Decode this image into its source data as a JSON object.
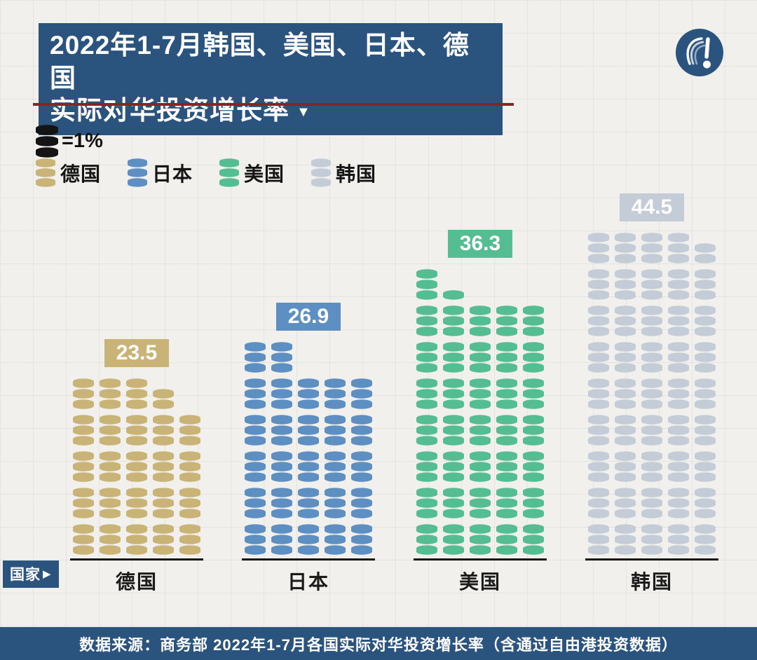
{
  "header": {
    "title_line1": "2022年1-7月韩国、美国、日本、德国",
    "title_line2": "实际对华投资增长率",
    "title_arrow": "▼",
    "title_bg": "#2a537e",
    "underline_color": "#8e2126"
  },
  "legend": {
    "unit_icon_color": "#141414",
    "unit_label": "=1%",
    "series": [
      {
        "label": "德国",
        "color": "#c9b376"
      },
      {
        "label": "日本",
        "color": "#5d8fc2"
      },
      {
        "label": "美国",
        "color": "#55bd92"
      },
      {
        "label": "韩国",
        "color": "#c4cdd7"
      }
    ]
  },
  "chart_data": {
    "type": "pictograph-bar",
    "title": "2022年1-7月韩国、美国、日本、德国实际对华投资增长率",
    "unit_per_stack_percent": 1,
    "disks_per_full_stack": 3,
    "categories": [
      "德国",
      "日本",
      "美国",
      "韩国"
    ],
    "values": [
      23.5,
      26.9,
      36.3,
      44.5
    ],
    "series_colors": [
      "#c9b376",
      "#5d8fc2",
      "#55bd92",
      "#c4cdd7"
    ],
    "axis_label": "国家",
    "axis_label_arrow": "▶",
    "legend_position": "top-left",
    "columns": [
      {
        "slug": "germany",
        "label": "德国",
        "value": "23.5",
        "color": "#c9b376",
        "rows": [
          [
            3,
            3,
            3,
            2
          ],
          [
            3,
            3,
            3,
            3,
            3
          ],
          [
            3,
            3,
            3,
            3,
            3
          ],
          [
            3,
            3,
            3,
            3,
            3
          ],
          [
            3,
            3,
            3,
            3,
            3
          ]
        ]
      },
      {
        "slug": "japan",
        "label": "日本",
        "value": "26.9",
        "color": "#5d8fc2",
        "rows": [
          [
            3,
            3
          ],
          [
            3,
            3,
            3,
            3,
            3
          ],
          [
            3,
            3,
            3,
            3,
            3
          ],
          [
            3,
            3,
            3,
            3,
            3
          ],
          [
            3,
            3,
            3,
            3,
            3
          ],
          [
            3,
            3,
            3,
            3,
            3
          ]
        ]
      },
      {
        "slug": "usa",
        "label": "美国",
        "value": "36.3",
        "color": "#55bd92",
        "rows": [
          [
            3,
            1
          ],
          [
            3,
            3,
            3,
            3,
            3
          ],
          [
            3,
            3,
            3,
            3,
            3
          ],
          [
            3,
            3,
            3,
            3,
            3
          ],
          [
            3,
            3,
            3,
            3,
            3
          ],
          [
            3,
            3,
            3,
            3,
            3
          ],
          [
            3,
            3,
            3,
            3,
            3
          ],
          [
            3,
            3,
            3,
            3,
            3
          ]
        ]
      },
      {
        "slug": "korea",
        "label": "韩国",
        "value": "44.5",
        "color": "#c4cdd7",
        "rows": [
          [
            3,
            3,
            3,
            3,
            2
          ],
          [
            3,
            3,
            3,
            3,
            3
          ],
          [
            3,
            3,
            3,
            3,
            3
          ],
          [
            3,
            3,
            3,
            3,
            3
          ],
          [
            3,
            3,
            3,
            3,
            3
          ],
          [
            3,
            3,
            3,
            3,
            3
          ],
          [
            3,
            3,
            3,
            3,
            3
          ],
          [
            3,
            3,
            3,
            3,
            3
          ],
          [
            3,
            3,
            3,
            3,
            3
          ]
        ]
      }
    ]
  },
  "footer": {
    "source": "数据来源：商务部 2022年1-7月各国实际对华投资增长率（含通过自由港投资数据）",
    "bg": "#2a537e"
  }
}
